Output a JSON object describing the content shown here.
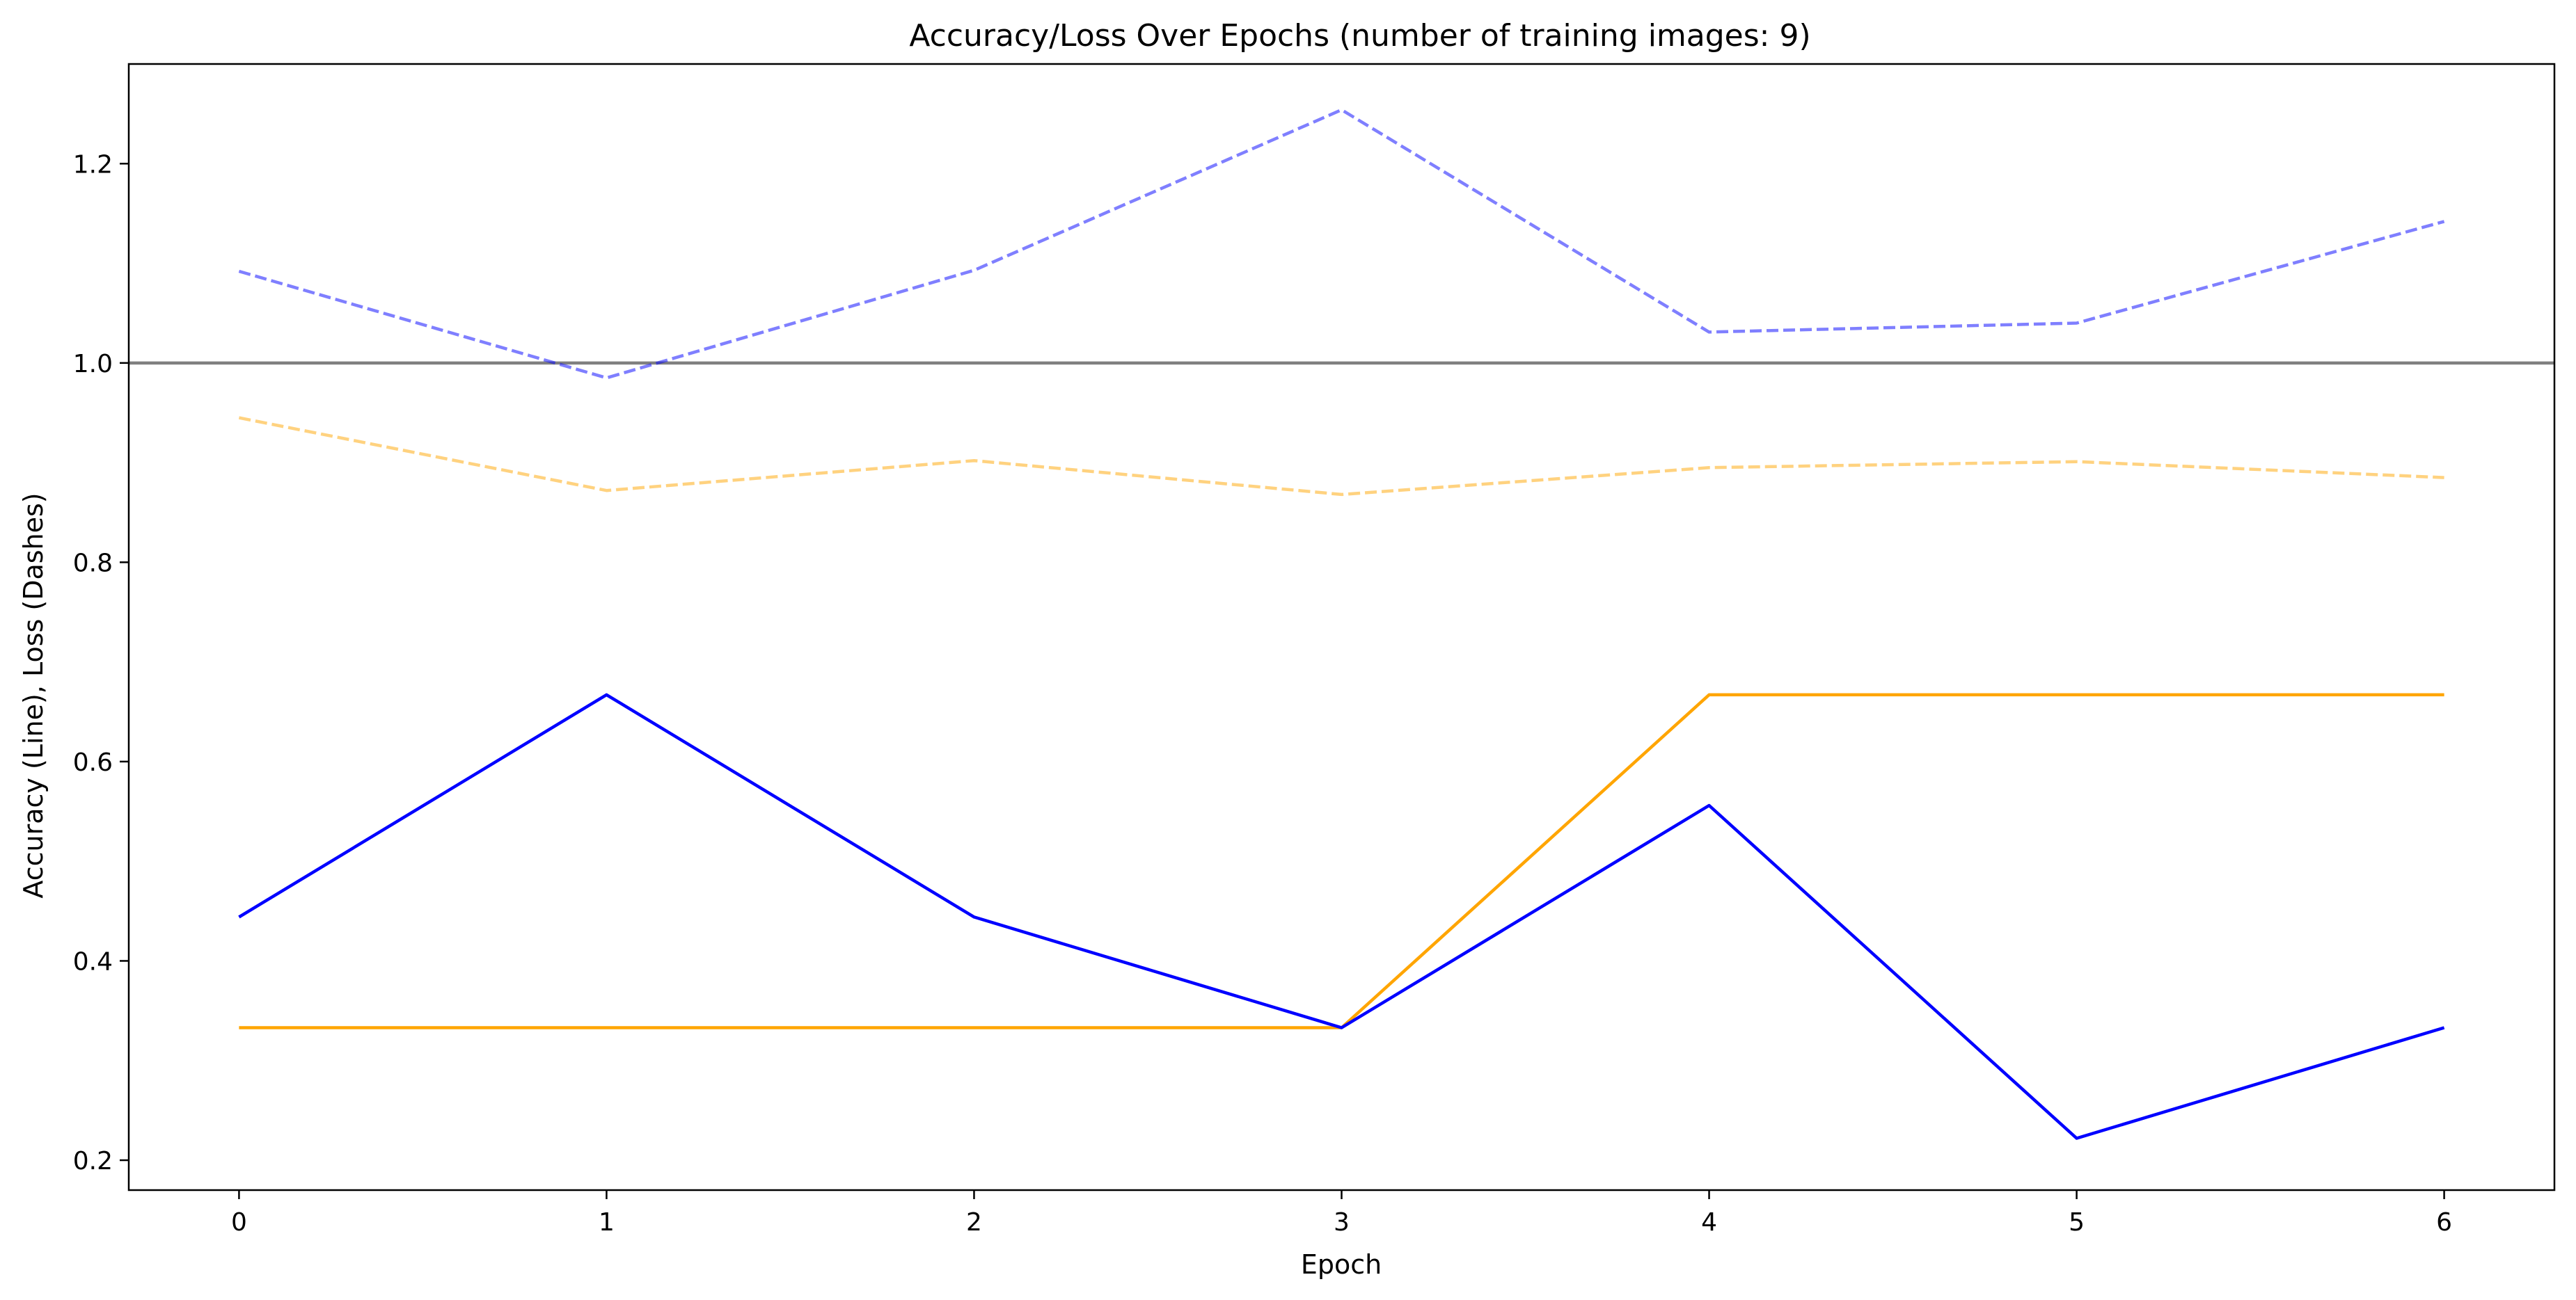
{
  "chart_data": {
    "type": "line",
    "title": "Accuracy/Loss Over Epochs (number of training images: 9)",
    "xlabel": "Epoch",
    "ylabel": "Accuracy (Line), Loss (Dashes)",
    "x": [
      0,
      1,
      2,
      3,
      4,
      5,
      6
    ],
    "xlim": [
      -0.3,
      6.3
    ],
    "ylim": [
      0.17,
      1.3
    ],
    "xticks": [
      0,
      1,
      2,
      3,
      4,
      5,
      6
    ],
    "yticks": [
      0.2,
      0.4,
      0.6,
      0.8,
      1.0,
      1.2
    ],
    "ytick_labels": [
      "0.2",
      "0.4",
      "0.6",
      "0.8",
      "1.0",
      "1.2"
    ],
    "grid": false,
    "reference_line": {
      "y": 1.0,
      "color": "#808080"
    },
    "series": [
      {
        "style": "solid",
        "color": "#0000ff",
        "opacity": 1.0,
        "values": [
          0.444,
          0.667,
          0.444,
          0.333,
          0.556,
          0.222,
          0.333
        ]
      },
      {
        "style": "solid",
        "color": "#ffa500",
        "opacity": 1.0,
        "values": [
          0.333,
          0.333,
          0.333,
          0.333,
          0.667,
          0.667,
          0.667
        ]
      },
      {
        "style": "dashed",
        "color": "#0000ff",
        "opacity": 0.5,
        "values": [
          1.092,
          0.985,
          1.093,
          1.254,
          1.031,
          1.04,
          1.142
        ]
      },
      {
        "style": "dashed",
        "color": "#ffa500",
        "opacity": 0.5,
        "values": [
          0.945,
          0.872,
          0.902,
          0.868,
          0.895,
          0.901,
          0.885
        ]
      }
    ]
  }
}
